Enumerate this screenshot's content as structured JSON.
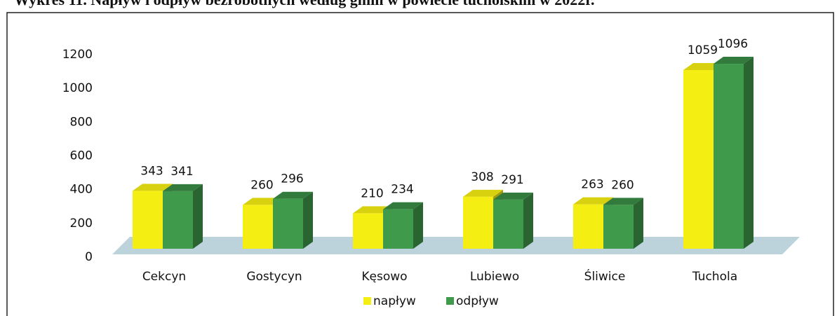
{
  "chart_data": {
    "type": "bar",
    "title": "Wykres 11. Napływ i odpływ bezrobotnych według gmin w powiecie tucholskim w 2022r.",
    "categories": [
      "Cekcyn",
      "Gostycyn",
      "Kęsowo",
      "Lubiewo",
      "Śliwice",
      "Tuchola"
    ],
    "series": [
      {
        "name": "napływ",
        "color": "#f5ee12",
        "values": [
          343,
          260,
          210,
          308,
          263,
          1059
        ]
      },
      {
        "name": "odpływ",
        "color": "#3f9a4c",
        "values": [
          341,
          296,
          234,
          291,
          260,
          1096
        ]
      }
    ],
    "ylim": [
      0,
      1200
    ],
    "yticks": [
      0,
      200,
      400,
      600,
      800,
      1000,
      1200
    ],
    "grid": false
  }
}
